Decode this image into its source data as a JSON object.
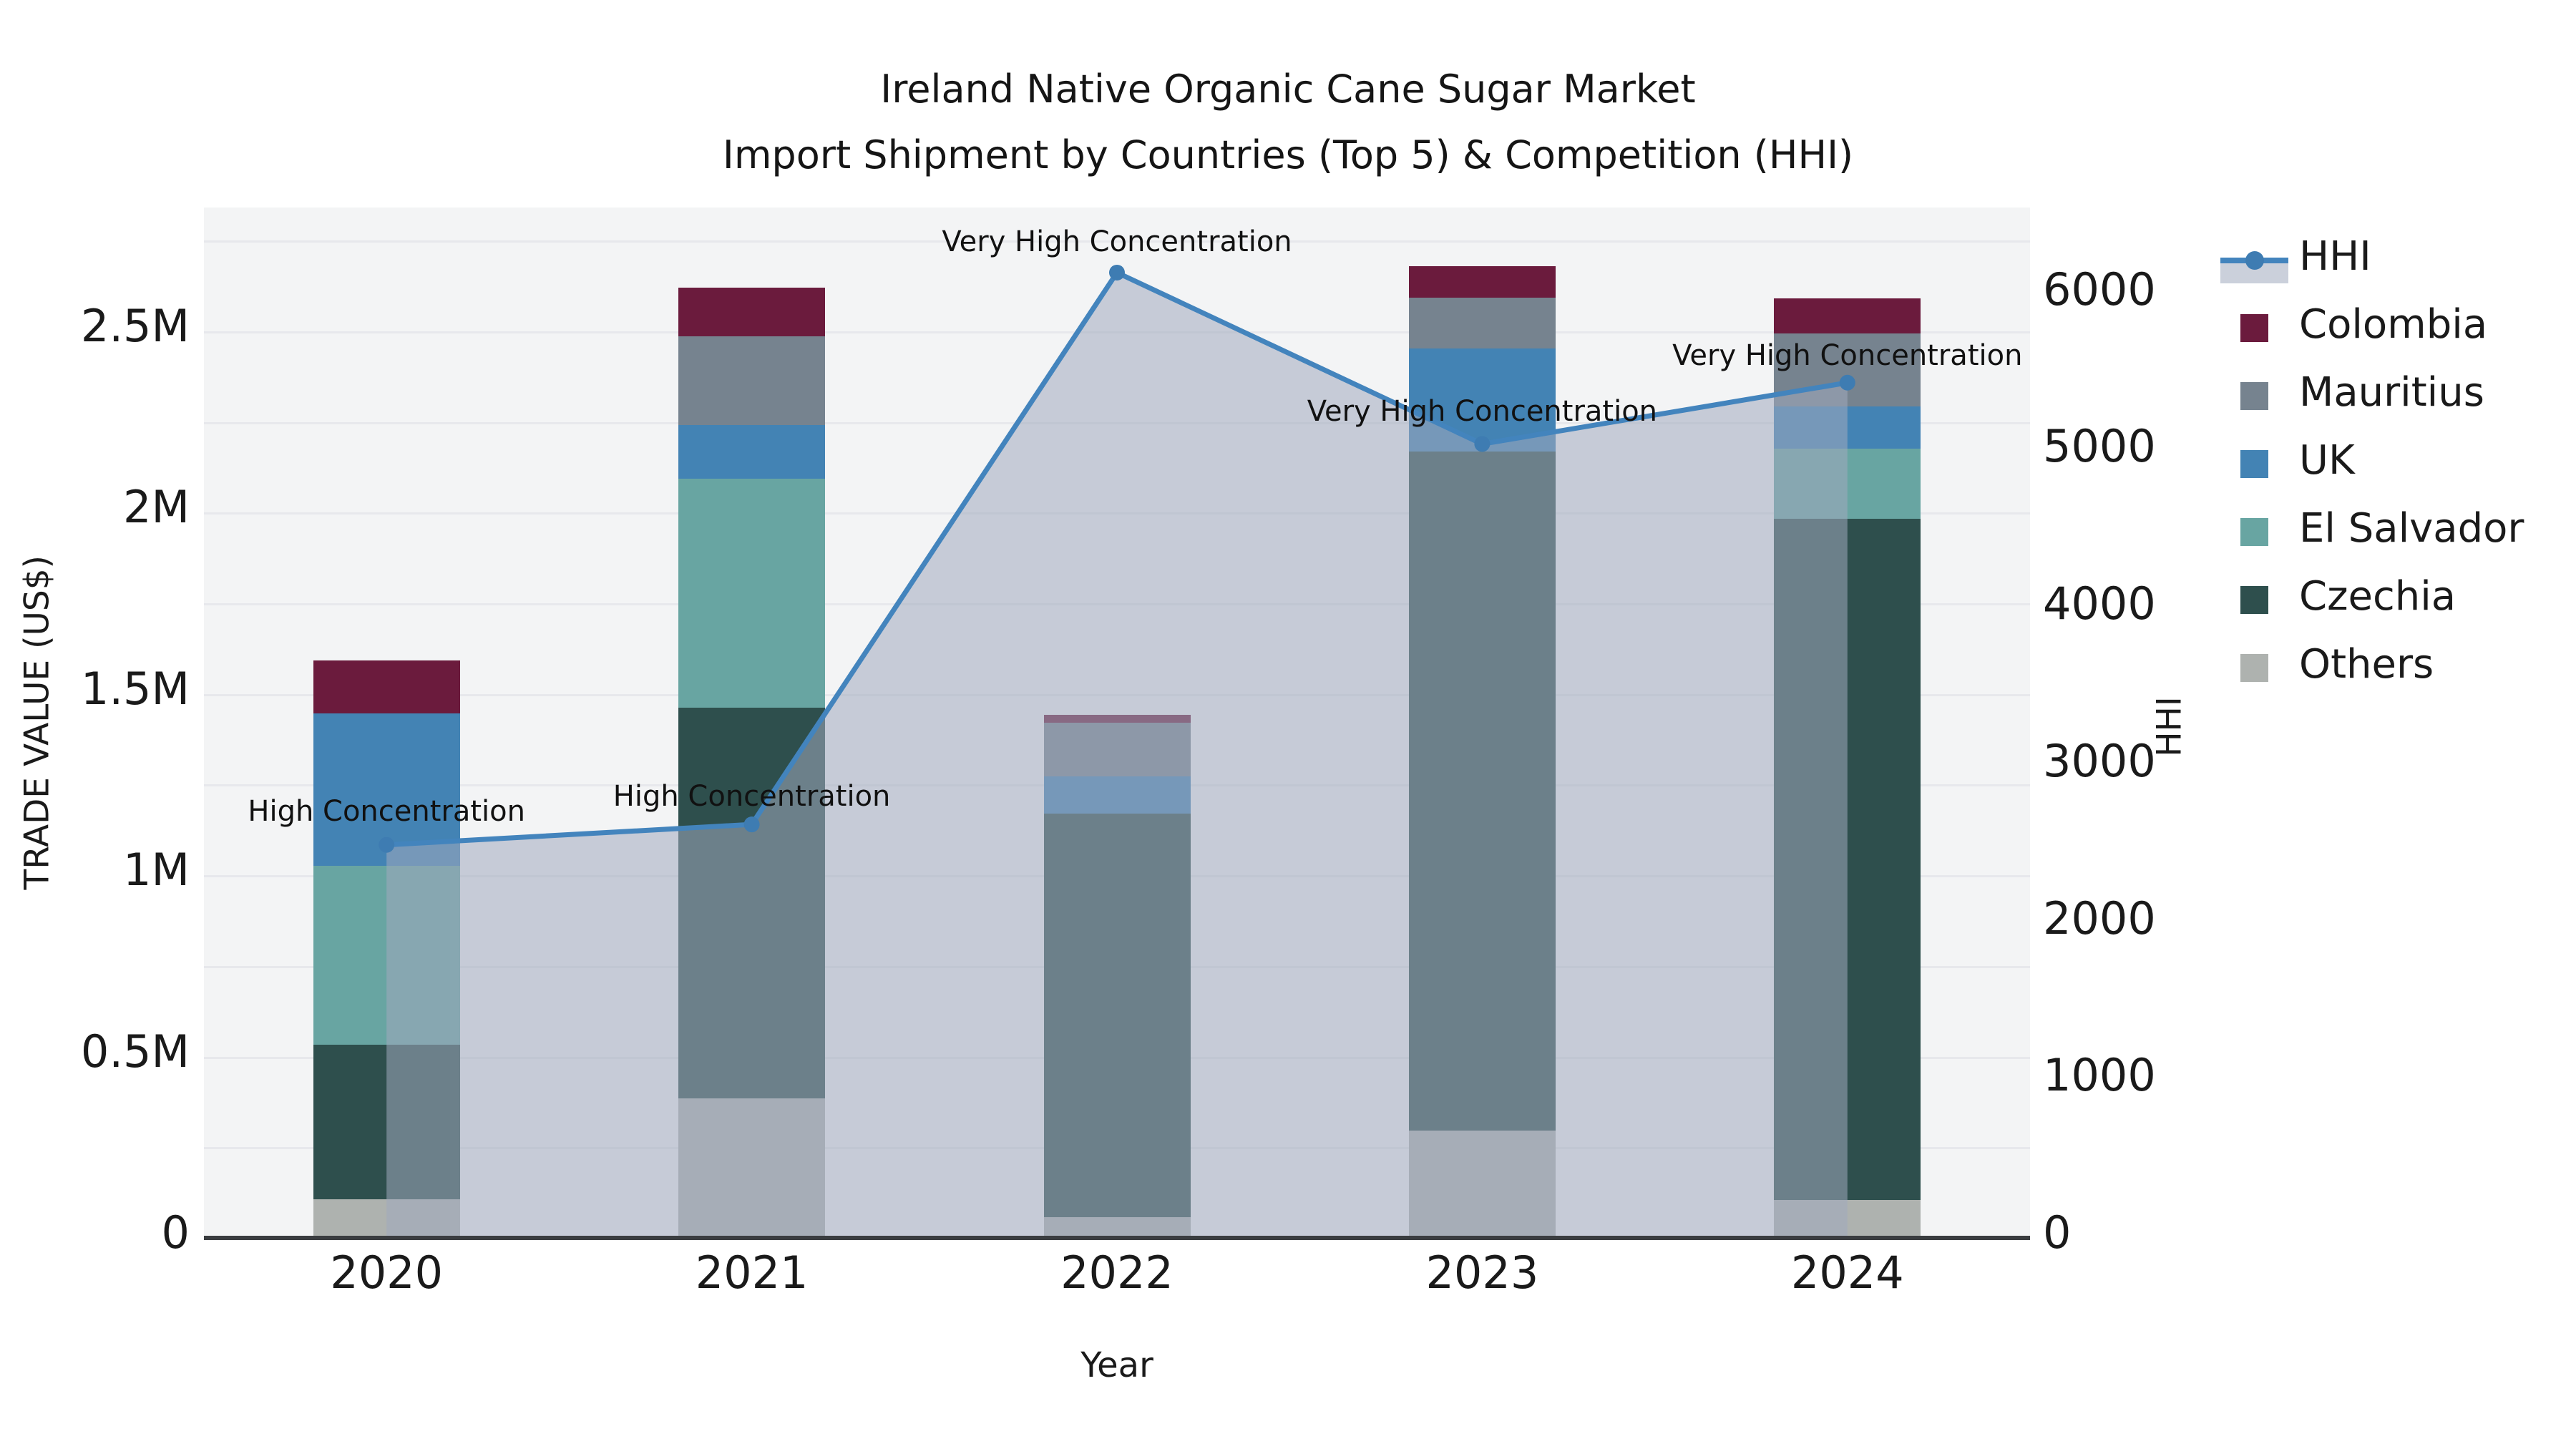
{
  "title": {
    "line1": "Ireland Native Organic Cane Sugar Market",
    "line2": "Import Shipment by Countries (Top 5) & Competition (HHI)"
  },
  "chart_data": {
    "type": "bar",
    "subtype": "stacked-bars-with-hhi-line-and-area-overlay",
    "title": "Ireland Native Organic Cane Sugar Market\nImport Shipment by Countries (Top 5) & Competition (HHI)",
    "xlabel": "Year",
    "ylabel_left": "TRADE VALUE (US$)",
    "ylabel_right": "HHI",
    "categories": [
      "2020",
      "2021",
      "2022",
      "2023",
      "2024"
    ],
    "stack_order_bottom_to_top": [
      "Others",
      "Czechia",
      "El Salvador",
      "UK",
      "Mauritius",
      "Colombia"
    ],
    "series": [
      {
        "name": "Colombia",
        "color": "#6b1b3d",
        "values": [
          145000,
          135000,
          21000,
          87000,
          96000
        ]
      },
      {
        "name": "Mauritius",
        "color": "#76838f",
        "values": [
          0,
          244000,
          148000,
          140000,
          201000
        ]
      },
      {
        "name": "UK",
        "color": "#4383b4",
        "values": [
          421000,
          148000,
          103000,
          284000,
          117000
        ]
      },
      {
        "name": "El Salvador",
        "color": "#68a5a2",
        "values": [
          494000,
          631000,
          0,
          0,
          193000
        ]
      },
      {
        "name": "Czechia",
        "color": "#2e4f4d",
        "values": [
          425000,
          1077000,
          1113000,
          1873000,
          1878000
        ]
      },
      {
        "name": "Others",
        "color": "#aeb2af",
        "values": [
          107000,
          385000,
          57000,
          296000,
          105000
        ]
      }
    ],
    "line_series": {
      "name": "HHI",
      "color": "#4384bd",
      "marker_color": "#3e7cb2",
      "area_fill": "rgba(160,170,190,0.55)",
      "values": [
        2500,
        2630,
        6140,
        5050,
        5440
      ]
    },
    "annotations": [
      {
        "text": "High Concentration",
        "year": "2020",
        "y_hhi": 2700
      },
      {
        "text": "High Concentration",
        "year": "2021",
        "y_hhi": 2795
      },
      {
        "text": "Very High Concentration",
        "year": "2022",
        "y_hhi": 6320
      },
      {
        "text": "Very High Concentration",
        "year": "2023",
        "y_hhi": 5245
      },
      {
        "text": "Very High Concentration",
        "year": "2024",
        "y_hhi": 5600
      }
    ],
    "axes": {
      "ylim_left": [
        0,
        2841000
      ],
      "ylim_right": [
        0,
        6554
      ],
      "yticks_left": [
        {
          "value": 0,
          "label": "0"
        },
        {
          "value": 500000,
          "label": "0.5M"
        },
        {
          "value": 1000000,
          "label": "1M"
        },
        {
          "value": 1500000,
          "label": "1.5M"
        },
        {
          "value": 2000000,
          "label": "2M"
        },
        {
          "value": 2500000,
          "label": "2.5M"
        }
      ],
      "yticks_right": [
        {
          "value": 0,
          "label": "0"
        },
        {
          "value": 1000,
          "label": "1000"
        },
        {
          "value": 2000,
          "label": "2000"
        },
        {
          "value": 3000,
          "label": "3000"
        },
        {
          "value": 4000,
          "label": "4000"
        },
        {
          "value": 5000,
          "label": "5000"
        },
        {
          "value": 6000,
          "label": "6000"
        }
      ],
      "gridline_step_left": 250000,
      "grid": true
    },
    "legend": {
      "position": "right",
      "items": [
        "HHI",
        "Colombia",
        "Mauritius",
        "UK",
        "El Salvador",
        "Czechia",
        "Others"
      ]
    }
  }
}
